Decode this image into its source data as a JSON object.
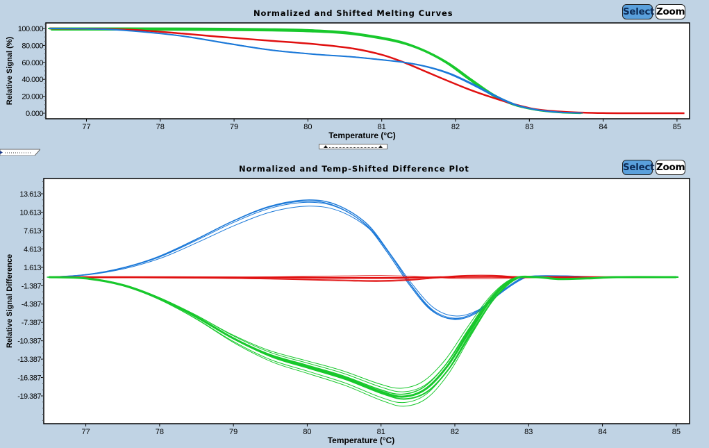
{
  "buttons": {
    "select_label": "Select",
    "zoom_label": "Zoom"
  },
  "colors": {
    "background": "#c0d3e4",
    "select_active": "#5aa0dc",
    "green": "#18c82c",
    "red": "#e01010",
    "blue": "#1a78d8",
    "purple": "#7a4aa0"
  },
  "chart_data": [
    {
      "type": "line",
      "title": "Normalized and Shifted Melting Curves",
      "xlabel": "Temperature (°C)",
      "ylabel": "Relative Signal (%)",
      "xlim": [
        76.45,
        85.17
      ],
      "ylim": [
        -6.5,
        106.5
      ],
      "xticks": [
        "77",
        "78",
        "79",
        "80",
        "81",
        "82",
        "83",
        "84",
        "85"
      ],
      "yticks": [
        "100.000",
        "80.000",
        "60.000",
        "40.000",
        "20.000",
        "0.000"
      ],
      "grid": false,
      "series": [
        {
          "name": "green",
          "color": "#18c82c",
          "x": [
            76.5,
            77.5,
            78.5,
            79.5,
            80.0,
            80.5,
            81.0,
            81.3,
            81.6,
            81.9,
            82.2,
            82.5,
            82.8,
            83.1,
            83.4,
            83.7
          ],
          "y": [
            100,
            100,
            99.8,
            99,
            98,
            95.5,
            89,
            83,
            73,
            59,
            40,
            22,
            10,
            4,
            1.2,
            0.3
          ]
        },
        {
          "name": "red",
          "color": "#e01010",
          "x": [
            76.5,
            77.2,
            77.7,
            78.3,
            78.9,
            79.5,
            80.1,
            80.6,
            81.0,
            81.3,
            81.6,
            81.9,
            82.2,
            82.5,
            82.8,
            83.1,
            83.5,
            84.0,
            84.5,
            85.1
          ],
          "y": [
            100,
            99.6,
            98,
            94,
            89.5,
            85.5,
            81.5,
            76.5,
            69,
            60,
            49,
            38,
            27.5,
            18.5,
            10.5,
            4.5,
            1.5,
            0.2,
            0,
            0
          ]
        },
        {
          "name": "blue",
          "color": "#1a78d8",
          "x": [
            76.5,
            77.2,
            77.7,
            78.3,
            78.9,
            79.5,
            80.1,
            80.6,
            81.0,
            81.3,
            81.6,
            81.9,
            82.2,
            82.5,
            82.8,
            83.1,
            83.4,
            83.7
          ],
          "y": [
            100,
            99.3,
            96.5,
            91,
            82.5,
            74.5,
            69.5,
            66.5,
            63,
            60,
            55,
            47,
            35,
            21.5,
            10,
            4,
            1.2,
            0.3
          ]
        }
      ]
    },
    {
      "type": "line",
      "title": "Normalized and Temp-Shifted Difference Plot",
      "xlabel": "Temperature (°C)",
      "ylabel": "Relative Signal Difference",
      "xlim": [
        76.43,
        85.18
      ],
      "ylim": [
        16.1,
        -23.9
      ],
      "xticks": [
        "77",
        "78",
        "79",
        "80",
        "81",
        "82",
        "83",
        "84",
        "85"
      ],
      "yticks": [
        "13.613",
        "10.613",
        "7.613",
        "4.613",
        "1.613",
        "-1.387",
        "-4.387",
        "-7.387",
        "-10.387",
        "-13.387",
        "-16.387",
        "-19.387"
      ],
      "grid": false,
      "series": [
        {
          "name": "blue",
          "color": "#1a78d8",
          "x": [
            76.5,
            77.0,
            77.5,
            78.0,
            78.5,
            79.0,
            79.5,
            80.0,
            80.4,
            80.8,
            81.1,
            81.4,
            81.7,
            82.0,
            82.3,
            82.6,
            82.9,
            83.1,
            83.5,
            84.0,
            84.5,
            85.0
          ],
          "y": [
            0,
            0.4,
            1.5,
            3.4,
            6.2,
            9.2,
            11.6,
            12.6,
            11.8,
            8.8,
            4.2,
            -1.2,
            -5.5,
            -6.9,
            -5.8,
            -2.8,
            -0.3,
            0.2,
            0.2,
            0,
            0,
            0.1
          ]
        },
        {
          "name": "red",
          "color": "#e01010",
          "x": [
            76.5,
            77.5,
            78.5,
            79.5,
            80.5,
            81.0,
            81.5,
            82.0,
            82.5,
            83.0,
            84.0,
            85.0
          ],
          "y": [
            0,
            0,
            -0.1,
            -0.3,
            -0.6,
            -0.7,
            -0.4,
            0.2,
            0.3,
            0,
            0,
            0
          ]
        },
        {
          "name": "green",
          "color": "#18c82c",
          "x": [
            76.5,
            77.0,
            77.5,
            78.0,
            78.5,
            79.0,
            79.5,
            80.0,
            80.5,
            81.0,
            81.3,
            81.6,
            81.9,
            82.2,
            82.5,
            82.8,
            83.1,
            83.4,
            83.8,
            84.2,
            85.0
          ],
          "y": [
            0,
            -0.2,
            -1.3,
            -3.5,
            -6.5,
            -10,
            -12.8,
            -14.6,
            -16.4,
            -18.7,
            -19.5,
            -18.3,
            -14.5,
            -8.8,
            -3.5,
            -0.3,
            0,
            -0.3,
            -0.2,
            0,
            0
          ]
        }
      ]
    }
  ]
}
